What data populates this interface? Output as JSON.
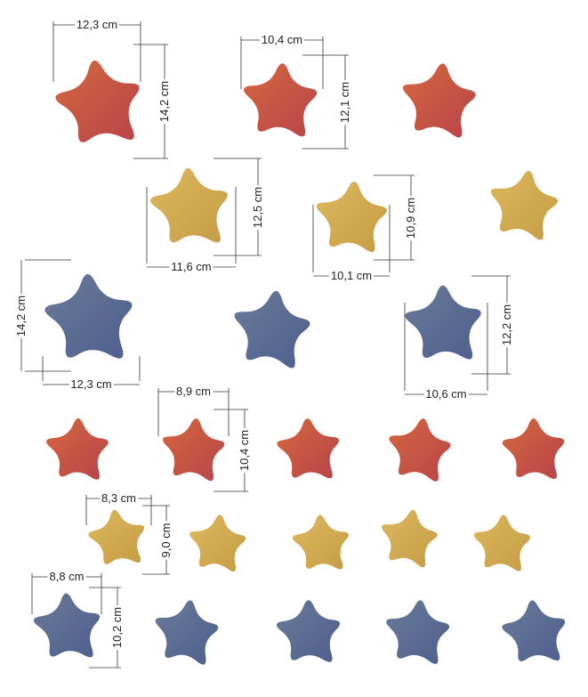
{
  "colors": {
    "red": "#c85a3c",
    "yellow": "#d3ad56",
    "blue": "#5e7295",
    "dimension_line": "#333333"
  },
  "star_groups": [
    {
      "color": "red",
      "count": 3,
      "size": "large"
    },
    {
      "color": "yellow",
      "count": 3,
      "size": "large"
    },
    {
      "color": "blue",
      "count": 3,
      "size": "large"
    },
    {
      "color": "red",
      "count": 5,
      "size": "small"
    },
    {
      "color": "yellow",
      "count": 5,
      "size": "small"
    },
    {
      "color": "blue",
      "count": 5,
      "size": "small"
    }
  ],
  "dimensions": [
    {
      "id": "d1w",
      "label": "12,3 cm"
    },
    {
      "id": "d1h",
      "label": "14,2 cm"
    },
    {
      "id": "d2w",
      "label": "10,4 cm"
    },
    {
      "id": "d2h",
      "label": "12,1 cm"
    },
    {
      "id": "d3h",
      "label": "12,5 cm"
    },
    {
      "id": "d3w",
      "label": "11,6 cm"
    },
    {
      "id": "d4h",
      "label": "10,9 cm"
    },
    {
      "id": "d4w",
      "label": "10,1 cm"
    },
    {
      "id": "d5h",
      "label": "14,2 cm"
    },
    {
      "id": "d5w",
      "label": "12,3 cm"
    },
    {
      "id": "d6h",
      "label": "12,2 cm"
    },
    {
      "id": "d6w",
      "label": "10,6 cm"
    },
    {
      "id": "d7w",
      "label": "8,9 cm"
    },
    {
      "id": "d7h",
      "label": "10,4 cm"
    },
    {
      "id": "d8w",
      "label": "8,3 cm"
    },
    {
      "id": "d8h",
      "label": "9,0 cm"
    },
    {
      "id": "d9w",
      "label": "8,8 cm"
    },
    {
      "id": "d9h",
      "label": "10,2 cm"
    }
  ]
}
